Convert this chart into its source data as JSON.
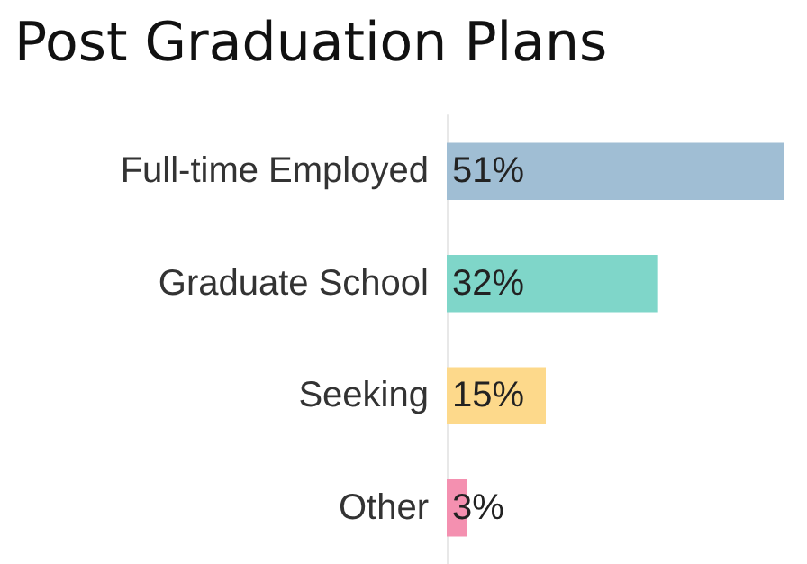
{
  "chart_data": {
    "type": "bar",
    "orientation": "horizontal",
    "title": "Post Graduation Plans",
    "categories": [
      "Full-time Employed",
      "Graduate School",
      "Seeking",
      "Other"
    ],
    "values": [
      51,
      32,
      15,
      3
    ],
    "colors": [
      "#a0bed4",
      "#7fd6c9",
      "#fdd98b",
      "#f490b0"
    ],
    "value_labels": [
      "51%",
      "32%",
      "15%",
      "3%"
    ]
  }
}
